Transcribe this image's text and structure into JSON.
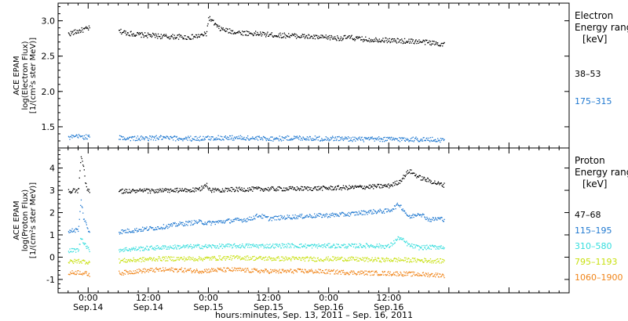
{
  "chart_data": [
    {
      "type": "scatter",
      "panel": "electron",
      "ylabel_lines": [
        "ACE EPAM",
        "log(Electron Flux)",
        "[1/(cm²s ster MeV)]"
      ],
      "yticks": [
        "1.5",
        "2.0",
        "2.5",
        "3.0"
      ],
      "ylim": [
        1.2,
        3.25
      ],
      "legend_title_lines": [
        "Electron",
        "Energy ranges",
        "[keV]"
      ],
      "xlim_hours": [
        -6,
        96
      ],
      "gap_hours": [
        0.3,
        6
      ],
      "series": [
        {
          "name": "38–53",
          "color": "#000000",
          "x": [
            -4,
            -2,
            0,
            6,
            8,
            10,
            12,
            14,
            16,
            18,
            20,
            22,
            23.5,
            24,
            26,
            28,
            30,
            32,
            34,
            36,
            38,
            40,
            42,
            44,
            46,
            48,
            50,
            52,
            54,
            56,
            58,
            60,
            62,
            64,
            66,
            68,
            70,
            71
          ],
          "y": [
            2.82,
            2.86,
            2.9,
            2.86,
            2.83,
            2.81,
            2.8,
            2.79,
            2.78,
            2.78,
            2.77,
            2.79,
            2.82,
            3.05,
            2.9,
            2.86,
            2.84,
            2.83,
            2.82,
            2.81,
            2.8,
            2.8,
            2.79,
            2.78,
            2.77,
            2.77,
            2.76,
            2.77,
            2.75,
            2.74,
            2.74,
            2.73,
            2.72,
            2.72,
            2.71,
            2.7,
            2.68,
            2.68
          ]
        },
        {
          "name": "175–315",
          "color": "#1f78d0",
          "x": [
            -4,
            -2,
            0,
            6,
            10,
            14,
            18,
            22,
            26,
            30,
            34,
            38,
            42,
            46,
            50,
            54,
            58,
            62,
            66,
            70,
            71
          ],
          "y": [
            1.35,
            1.37,
            1.36,
            1.35,
            1.34,
            1.35,
            1.34,
            1.34,
            1.35,
            1.35,
            1.34,
            1.34,
            1.35,
            1.34,
            1.34,
            1.33,
            1.33,
            1.33,
            1.33,
            1.32,
            1.32
          ]
        }
      ]
    },
    {
      "type": "scatter",
      "panel": "proton",
      "ylabel_lines": [
        "ACE EPAM",
        "log(Proton Flux)",
        "[1/(cm²s ster MeV)]"
      ],
      "yticks": [
        "-1",
        "0",
        "1",
        "2",
        "3",
        "4"
      ],
      "ylim": [
        -1.6,
        4.9
      ],
      "legend_title_lines": [
        "Proton",
        "Energy ranges",
        "[keV]"
      ],
      "xlim_hours": [
        -6,
        96
      ],
      "gap_hours": [
        0.3,
        6
      ],
      "series": [
        {
          "name": "47–68",
          "color": "#000000",
          "x": [
            -4,
            -2,
            -1.5,
            -1,
            -0.5,
            0,
            6,
            10,
            14,
            18,
            22,
            23.5,
            24,
            28,
            32,
            36,
            40,
            44,
            48,
            52,
            56,
            60,
            62,
            64,
            66,
            68,
            70,
            71
          ],
          "y": [
            3.0,
            3.0,
            4.5,
            4.1,
            3.2,
            3.0,
            2.98,
            2.99,
            3.0,
            3.02,
            3.03,
            3.3,
            3.03,
            3.05,
            3.07,
            3.08,
            3.09,
            3.1,
            3.12,
            3.14,
            3.18,
            3.22,
            3.4,
            3.9,
            3.6,
            3.45,
            3.3,
            3.25
          ]
        },
        {
          "name": "115–195",
          "color": "#1f78d0",
          "x": [
            -4,
            -2,
            -1.5,
            -1,
            0,
            6,
            10,
            14,
            18,
            22,
            24,
            28,
            32,
            34,
            36,
            40,
            44,
            48,
            52,
            56,
            60,
            62,
            64,
            66,
            68,
            70,
            71
          ],
          "y": [
            1.2,
            1.25,
            2.6,
            1.8,
            1.2,
            1.15,
            1.25,
            1.35,
            1.5,
            1.6,
            1.55,
            1.65,
            1.72,
            1.9,
            1.75,
            1.82,
            1.87,
            1.9,
            1.95,
            2.05,
            2.1,
            2.4,
            1.8,
            2.0,
            1.7,
            1.75,
            1.72
          ]
        },
        {
          "name": "310–580",
          "color": "#33dddd",
          "x": [
            -4,
            -2,
            -1.5,
            0,
            6,
            10,
            14,
            18,
            22,
            24,
            28,
            32,
            36,
            40,
            44,
            48,
            52,
            56,
            60,
            62,
            64,
            66,
            70,
            71
          ],
          "y": [
            0.3,
            0.35,
            0.9,
            0.35,
            0.35,
            0.4,
            0.45,
            0.48,
            0.5,
            0.5,
            0.52,
            0.53,
            0.52,
            0.54,
            0.52,
            0.53,
            0.52,
            0.54,
            0.5,
            0.9,
            0.55,
            0.45,
            0.48,
            0.47
          ]
        },
        {
          "name": "795–1193",
          "color": "#c8e010",
          "x": [
            -4,
            -2,
            0,
            6,
            10,
            14,
            18,
            22,
            26,
            30,
            34,
            38,
            42,
            46,
            50,
            54,
            58,
            62,
            66,
            70,
            71
          ],
          "y": [
            -0.2,
            -0.15,
            -0.2,
            -0.15,
            -0.1,
            -0.05,
            -0.05,
            -0.05,
            -0.02,
            0.0,
            -0.03,
            -0.05,
            -0.05,
            -0.07,
            -0.05,
            -0.08,
            -0.1,
            -0.1,
            -0.12,
            -0.15,
            -0.15
          ]
        },
        {
          "name": "1060–1900",
          "color": "#f08418",
          "x": [
            -4,
            -2,
            0,
            6,
            10,
            14,
            18,
            22,
            26,
            30,
            34,
            38,
            42,
            46,
            50,
            54,
            58,
            62,
            66,
            70,
            71
          ],
          "y": [
            -0.7,
            -0.65,
            -0.75,
            -0.7,
            -0.6,
            -0.55,
            -0.55,
            -0.6,
            -0.55,
            -0.55,
            -0.6,
            -0.62,
            -0.6,
            -0.62,
            -0.65,
            -0.68,
            -0.7,
            -0.72,
            -0.75,
            -0.78,
            -0.8
          ]
        }
      ]
    }
  ],
  "xaxis": {
    "ticks": [
      {
        "hour": 0,
        "time": "0:00",
        "date": "Sep.14"
      },
      {
        "hour": 12,
        "time": "12:00",
        "date": "Sep.14"
      },
      {
        "hour": 24,
        "time": "0:00",
        "date": "Sep.15"
      },
      {
        "hour": 36,
        "time": "12:00",
        "date": "Sep.15"
      },
      {
        "hour": 48,
        "time": "0:00",
        "date": "Sep.16"
      },
      {
        "hour": 60,
        "time": "12:00",
        "date": "Sep.16"
      }
    ],
    "xlabel": "hours:minutes, Sep. 13, 2011 – Sep. 16, 2011"
  }
}
